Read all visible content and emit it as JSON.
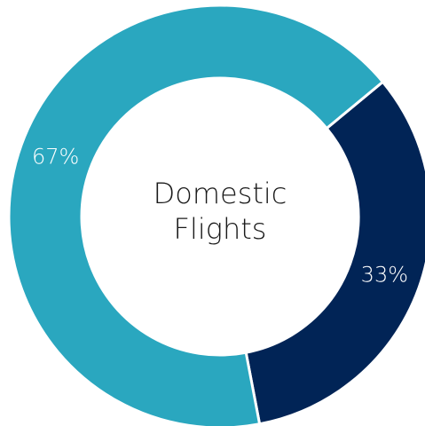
{
  "chart_data": {
    "type": "pie",
    "title": "Domestic Flights",
    "categories": [
      null,
      null
    ],
    "values": [
      33,
      67
    ],
    "value_labels": [
      "33%",
      "67%"
    ],
    "colors": [
      "#012456",
      "#2aa7bf"
    ]
  }
}
